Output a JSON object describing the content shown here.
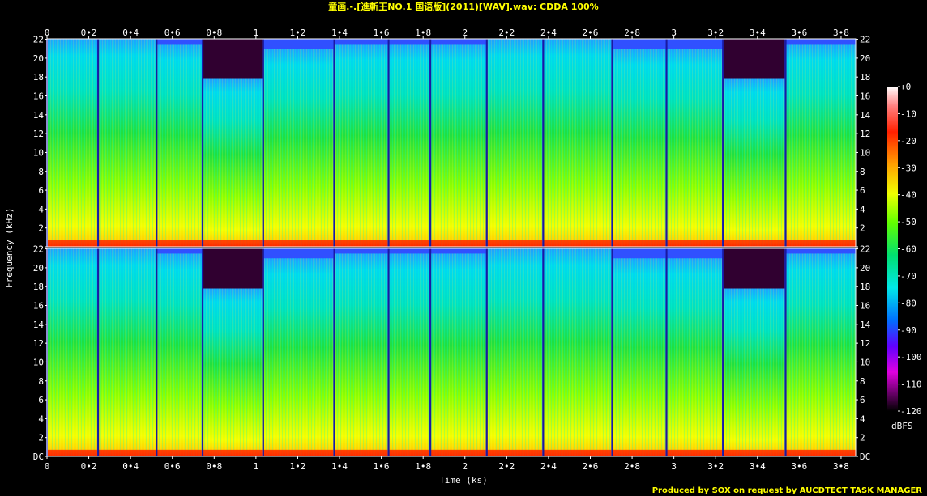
{
  "title": "童画.-.[進斬王NO.1 国语版](2011)[WAV].wav: CDDA 100%",
  "footer": "Produced by SOX on request by AUCDTECT TASK MANAGER",
  "colors": {
    "background": "#000000",
    "title": "#ffff00",
    "text": "#ffffff"
  },
  "chart_data": {
    "type": "heatmap",
    "title": "童画.-.[進斬王NO.1 国语版](2011)[WAV].wav: CDDA 100%",
    "xlabel": "Time (ks)",
    "ylabel": "Frequency (kHz)",
    "xlim": [
      0,
      3.87
    ],
    "ylim": [
      0,
      22.05
    ],
    "channels": 2,
    "x_ticks": [
      "0",
      "0•2",
      "0•4",
      "0•6",
      "0•8",
      "1",
      "1•2",
      "1•4",
      "1•6",
      "1•8",
      "2",
      "2•2",
      "2•4",
      "2•6",
      "2•8",
      "3",
      "3•2",
      "3•4",
      "3•6",
      "3•8"
    ],
    "x_tick_values": [
      0,
      0.2,
      0.4,
      0.6,
      0.8,
      1.0,
      1.2,
      1.4,
      1.6,
      1.8,
      2.0,
      2.2,
      2.4,
      2.6,
      2.8,
      3.0,
      3.2,
      3.4,
      3.6,
      3.8
    ],
    "y_ticks": [
      "22",
      "20",
      "18",
      "16",
      "14",
      "12",
      "10",
      "8",
      "6",
      "4",
      "2",
      "DC"
    ],
    "y_tick_values": [
      22,
      20,
      18,
      16,
      14,
      12,
      10,
      8,
      6,
      4,
      2,
      0
    ],
    "colorbar": {
      "label": "dBFS",
      "ticks": [
        "+0",
        "-10",
        "-20",
        "-30",
        "-40",
        "-50",
        "-60",
        "-70",
        "-80",
        "-90",
        "-100",
        "-110",
        "-120"
      ],
      "values": [
        0,
        -10,
        -20,
        -30,
        -40,
        -50,
        -60,
        -70,
        -80,
        -90,
        -100,
        -110,
        -120
      ]
    },
    "tracks_ks": [
      {
        "start": 0.0,
        "end": 0.24,
        "cutoff_khz": 22.0
      },
      {
        "start": 0.245,
        "end": 0.52,
        "cutoff_khz": 22.0
      },
      {
        "start": 0.525,
        "end": 0.74,
        "cutoff_khz": 21.5
      },
      {
        "start": 0.745,
        "end": 1.03,
        "cutoff_khz": 17.8
      },
      {
        "start": 1.035,
        "end": 1.37,
        "cutoff_khz": 21.0
      },
      {
        "start": 1.375,
        "end": 1.63,
        "cutoff_khz": 21.5
      },
      {
        "start": 1.635,
        "end": 1.83,
        "cutoff_khz": 21.5
      },
      {
        "start": 1.835,
        "end": 2.1,
        "cutoff_khz": 21.5
      },
      {
        "start": 2.105,
        "end": 2.37,
        "cutoff_khz": 22.0
      },
      {
        "start": 2.375,
        "end": 2.7,
        "cutoff_khz": 22.0
      },
      {
        "start": 2.705,
        "end": 2.96,
        "cutoff_khz": 21.0
      },
      {
        "start": 2.965,
        "end": 3.23,
        "cutoff_khz": 21.0
      },
      {
        "start": 3.235,
        "end": 3.53,
        "cutoff_khz": 17.8
      },
      {
        "start": 3.535,
        "end": 3.87,
        "cutoff_khz": 21.5
      }
    ]
  }
}
